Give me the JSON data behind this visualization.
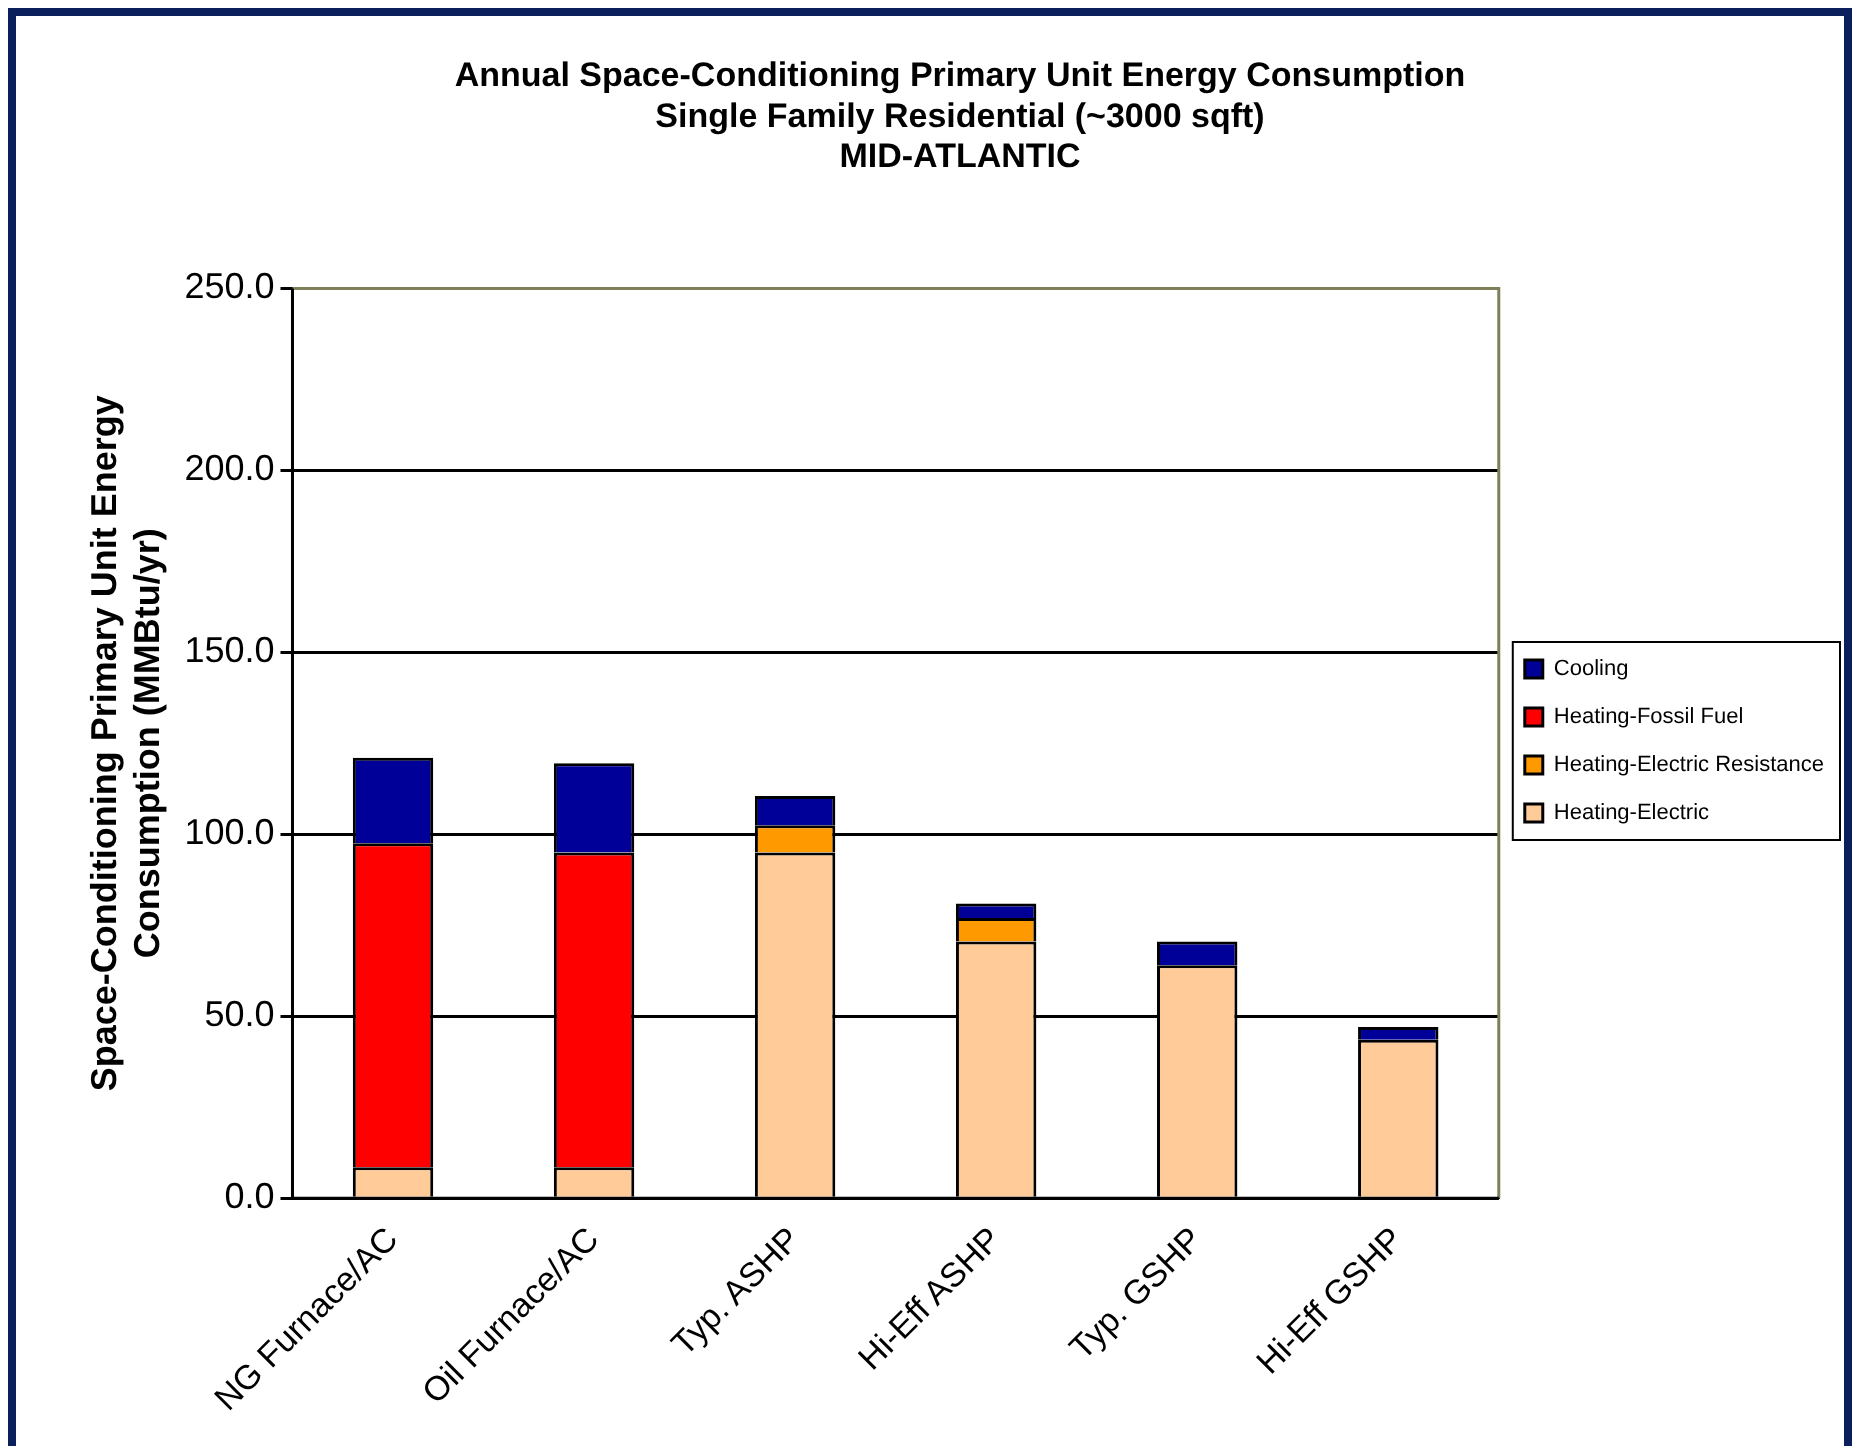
{
  "chart_data": {
    "type": "bar",
    "title": "Annual Space-Conditioning Primary Unit Energy Consumption\nSingle Family Residential (~3000 sqft)\nMID-ATLANTIC",
    "ylabel": "Space-Conditioning Primary Unit Energy\nConsumption (MMBtu/yr)",
    "categories": [
      "NG Furnace/AC",
      "Oil Furnace/AC",
      "Typ. ASHP",
      "Hi-Eff ASHP",
      "Typ. GSHP",
      "Hi-Eff GSHP"
    ],
    "stacked": true,
    "series": [
      {
        "name": "Heating-Electric",
        "color": "#ffcc99",
        "values": [
          8.5,
          8.5,
          95,
          70.5,
          64,
          43.5
        ]
      },
      {
        "name": "Heating-Electric Resistance",
        "color": "#ff9900",
        "values": [
          0,
          0,
          7.5,
          6.5,
          0,
          0
        ]
      },
      {
        "name": "Heating-Fossil Fuel",
        "color": "#ff0000",
        "values": [
          89,
          86.5,
          0,
          0,
          0,
          0
        ]
      },
      {
        "name": "Cooling",
        "color": "#000099",
        "values": [
          23.5,
          24.5,
          8,
          4,
          6.5,
          3.5
        ]
      }
    ],
    "ylim": [
      0,
      250
    ],
    "yticks": [
      {
        "value": 0,
        "label": "0.0"
      },
      {
        "value": 50,
        "label": "50.0"
      },
      {
        "value": 100,
        "label": "100.0"
      },
      {
        "value": 150,
        "label": "150.0"
      },
      {
        "value": 200,
        "label": "200.0"
      },
      {
        "value": 250,
        "label": "250.0"
      }
    ],
    "grid": "y",
    "legend": "right"
  }
}
